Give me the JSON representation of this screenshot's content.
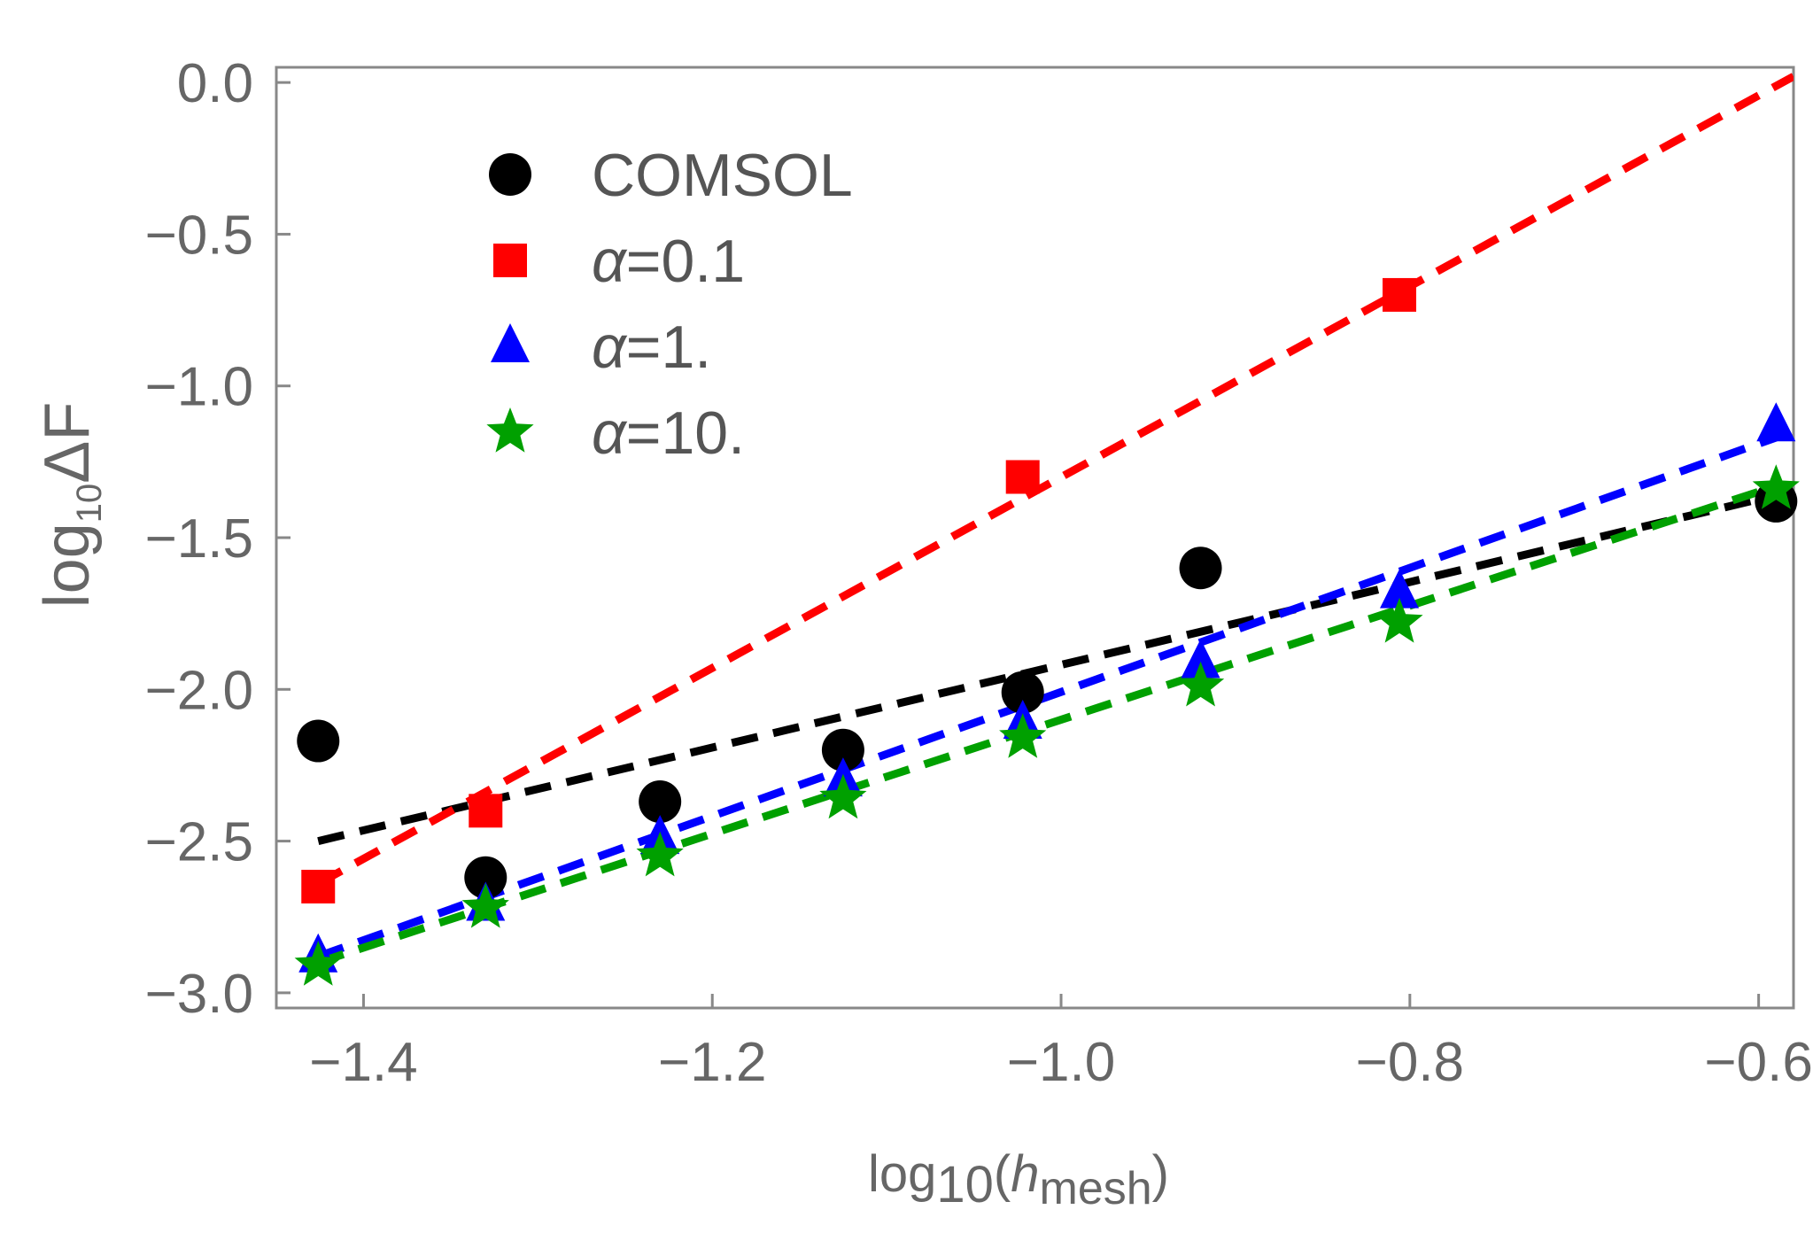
{
  "chart_data": {
    "type": "scatter",
    "title": "",
    "xlabel_parts": {
      "log": "log",
      "sub": "10",
      "open": "(",
      "h": "h",
      "mesh": "mesh",
      "close": ")"
    },
    "ylabel_parts": {
      "log": "log",
      "sub": "10",
      "delta": "ΔF"
    },
    "xlim": [
      -1.45,
      -0.58
    ],
    "ylim": [
      -3.05,
      0.05
    ],
    "xticks": [
      -1.4,
      -1.2,
      -1.0,
      -0.8,
      -0.6
    ],
    "xtick_labels": [
      "−1.4",
      "−1.2",
      "−1.0",
      "−0.8",
      "−0.6"
    ],
    "yticks": [
      0.0,
      -0.5,
      -1.0,
      -1.5,
      -2.0,
      -2.5,
      -3.0
    ],
    "ytick_labels": [
      "0.0",
      "−0.5",
      "−1.0",
      "−1.5",
      "−2.0",
      "−2.5",
      "−3.0"
    ],
    "legend_position": "top-left",
    "x": [
      -1.426,
      -1.33,
      -1.23,
      -1.125,
      -1.022,
      -0.92,
      -0.806,
      -0.59
    ],
    "series": [
      {
        "name": "COMSOL",
        "legend_greek": "",
        "legend_text": "COMSOL",
        "color": "#000000",
        "marker": "circle",
        "values": [
          -2.17,
          -2.62,
          -2.37,
          -2.2,
          -2.01,
          -1.6,
          null,
          -1.38
        ],
        "fit": {
          "x": [
            -1.426,
            -0.59
          ],
          "y": [
            -2.5,
            -1.36
          ]
        }
      },
      {
        "name": "α=0.1",
        "legend_greek": "α",
        "legend_text": "=0.1",
        "color": "#ff0000",
        "marker": "square",
        "values": [
          -2.65,
          -2.4,
          null,
          null,
          -1.3,
          null,
          -0.7,
          null
        ],
        "fit": {
          "x": [
            -1.426,
            -0.58
          ],
          "y": [
            -2.64,
            0.02
          ]
        }
      },
      {
        "name": "α=1.",
        "legend_greek": "α",
        "legend_text": "=1.",
        "color": "#0000ff",
        "marker": "triangle",
        "values": [
          -2.88,
          -2.71,
          -2.49,
          -2.3,
          -2.11,
          -1.91,
          -1.68,
          -1.13
        ],
        "fit": {
          "x": [
            -1.426,
            -0.59
          ],
          "y": [
            -2.88,
            -1.17
          ]
        }
      },
      {
        "name": "α=10.",
        "legend_greek": "α",
        "legend_text": "=10.",
        "color": "#00a000",
        "marker": "star",
        "values": [
          -2.91,
          -2.72,
          -2.55,
          -2.36,
          -2.16,
          -1.99,
          -1.78,
          -1.34
        ],
        "fit": {
          "x": [
            -1.426,
            -0.59
          ],
          "y": [
            -2.9,
            -1.33
          ]
        }
      }
    ]
  }
}
